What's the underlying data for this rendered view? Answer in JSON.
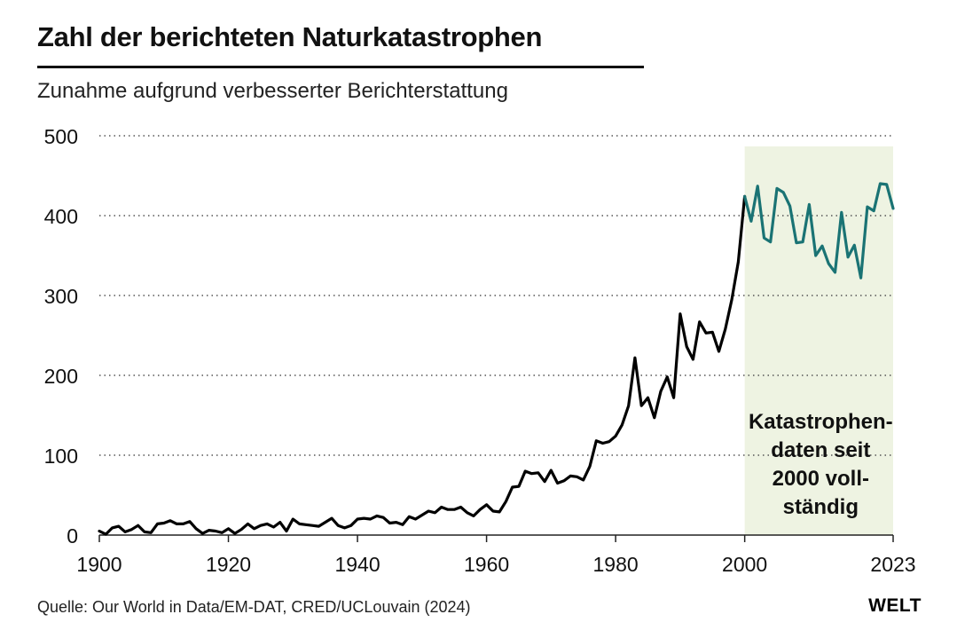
{
  "header": {
    "title": "Zahl der berichteten Naturkatastrophen",
    "subtitle": "Zunahme aufgrund verbesserter Berichterstattung"
  },
  "footer": {
    "source": "Quelle: Our World in Data/EM-DAT, CRED/UCLouvain (2024)",
    "logo": "WELT"
  },
  "colors": {
    "pre2000_line": "#000000",
    "post2000_line": "#1a7374",
    "highlight_band": "#eef3e2",
    "grid": "#555555"
  },
  "chart_data": {
    "type": "line",
    "title": "Zahl der berichteten Naturkatastrophen",
    "subtitle": "Zunahme aufgrund verbesserter Berichterstattung",
    "xlabel": "",
    "ylabel": "",
    "xlim": [
      1900,
      2023
    ],
    "ylim": [
      0,
      500
    ],
    "x_ticks": [
      "1900",
      "1920",
      "1940",
      "1960",
      "1980",
      "2000",
      "2023"
    ],
    "y_ticks": [
      "0",
      "100",
      "200",
      "300",
      "400",
      "500"
    ],
    "grid": "horizontal dotted",
    "highlight": {
      "from": 2000,
      "to": 2023,
      "label_lines": [
        "Katastrophen-",
        "daten seit",
        "2000 voll-",
        "ständig"
      ]
    },
    "x": [
      1900,
      1901,
      1902,
      1903,
      1904,
      1905,
      1906,
      1907,
      1908,
      1909,
      1910,
      1911,
      1912,
      1913,
      1914,
      1915,
      1916,
      1917,
      1918,
      1919,
      1920,
      1921,
      1922,
      1923,
      1924,
      1925,
      1926,
      1927,
      1928,
      1929,
      1930,
      1931,
      1932,
      1933,
      1934,
      1935,
      1936,
      1937,
      1938,
      1939,
      1940,
      1941,
      1942,
      1943,
      1944,
      1945,
      1946,
      1947,
      1948,
      1949,
      1950,
      1951,
      1952,
      1953,
      1954,
      1955,
      1956,
      1957,
      1958,
      1959,
      1960,
      1961,
      1962,
      1963,
      1964,
      1965,
      1966,
      1967,
      1968,
      1969,
      1970,
      1971,
      1972,
      1973,
      1974,
      1975,
      1976,
      1977,
      1978,
      1979,
      1980,
      1981,
      1982,
      1983,
      1984,
      1985,
      1986,
      1987,
      1988,
      1989,
      1990,
      1991,
      1992,
      1993,
      1994,
      1995,
      1996,
      1997,
      1998,
      1999,
      2000,
      2001,
      2002,
      2003,
      2004,
      2005,
      2006,
      2007,
      2008,
      2009,
      2010,
      2011,
      2012,
      2013,
      2014,
      2015,
      2016,
      2017,
      2018,
      2019,
      2020,
      2021,
      2022,
      2023
    ],
    "series": [
      {
        "values": [
          5,
          1,
          9,
          11,
          4,
          7,
          12,
          4,
          3,
          14,
          15,
          18,
          14,
          14,
          17,
          8,
          2,
          6,
          5,
          3,
          8,
          2,
          7,
          14,
          8,
          12,
          14,
          10,
          16,
          5,
          20,
          14,
          13,
          12,
          11,
          16,
          21,
          12,
          9,
          12,
          20,
          21,
          20,
          24,
          22,
          15,
          16,
          13,
          23,
          20,
          25,
          30,
          28,
          35,
          32,
          32,
          35,
          28,
          24,
          32,
          38,
          30,
          29,
          42,
          60,
          61,
          80,
          77,
          78,
          67,
          81,
          65,
          68,
          74,
          73,
          69,
          86,
          118,
          115,
          117,
          124,
          138,
          162,
          222,
          162,
          172,
          147,
          180,
          198,
          172,
          277,
          236,
          220,
          267,
          253,
          254,
          230,
          258,
          295,
          342,
          424,
          393,
          437,
          372,
          367,
          434,
          429,
          412,
          366,
          367,
          414,
          350,
          362,
          340,
          329,
          404,
          348,
          363,
          322,
          411,
          406,
          440,
          439,
          409
        ]
      }
    ]
  }
}
